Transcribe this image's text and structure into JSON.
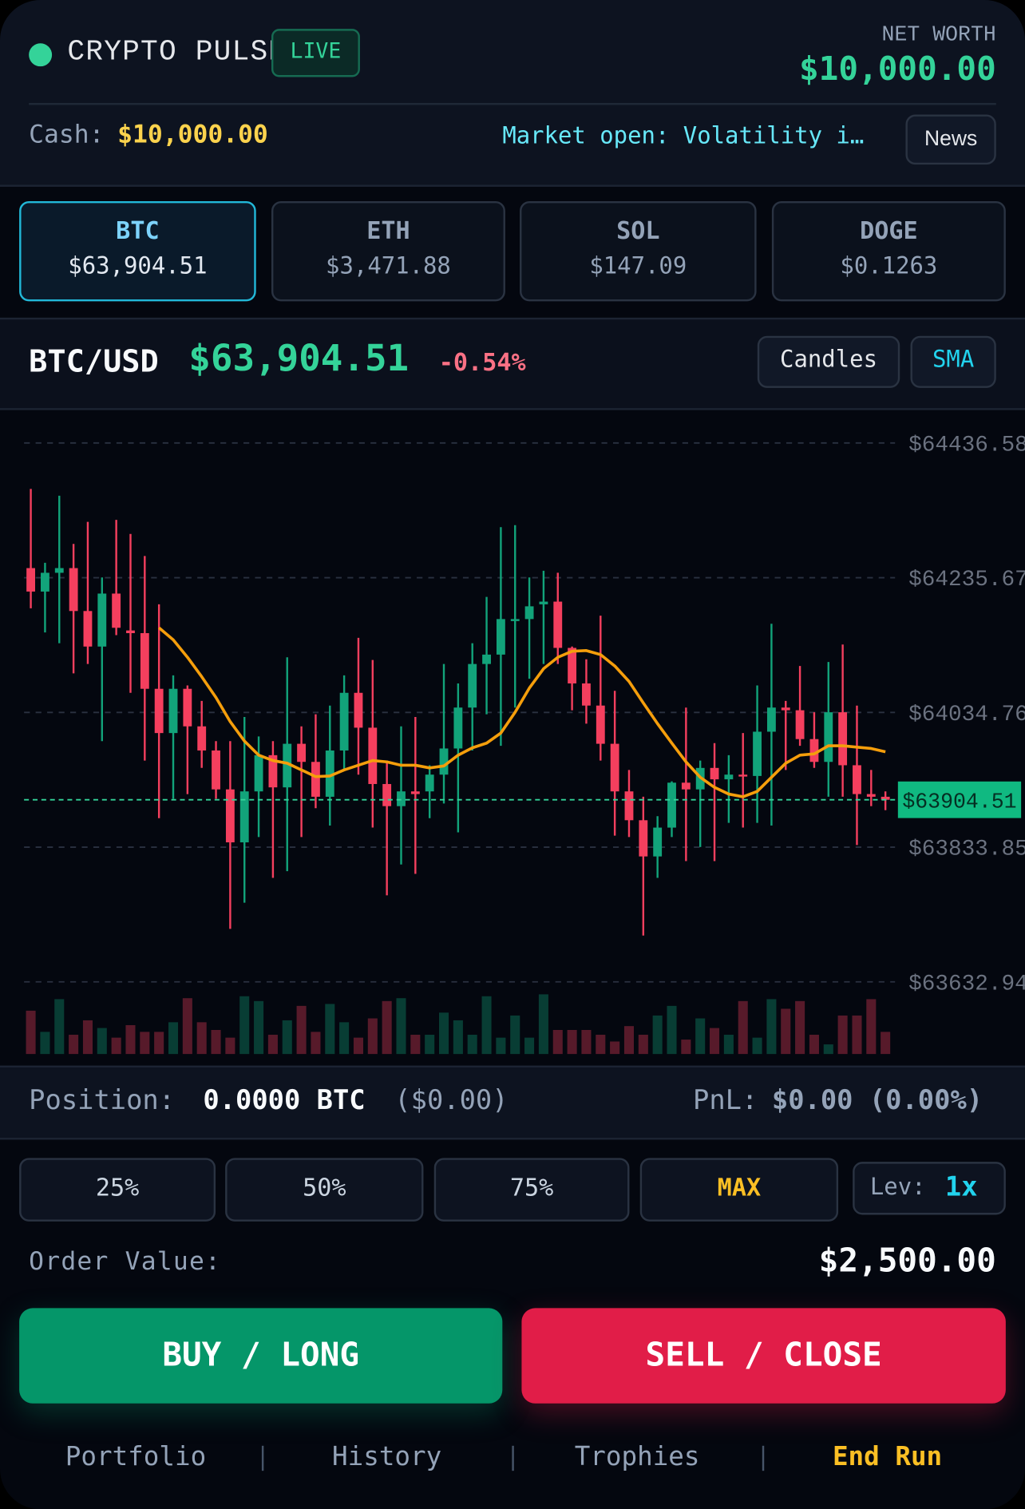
{
  "header": {
    "title": "CRYPTO PULSE",
    "badge": "LIVE",
    "net_worth_label": "NET WORTH",
    "net_worth": "$10,000.00",
    "cash_label": "Cash:",
    "cash": "$10,000.00",
    "ticker": "Market open: Volatility i…",
    "news_button": "News"
  },
  "assets": [
    {
      "symbol": "BTC",
      "price": "$63,904.51"
    },
    {
      "symbol": "ETH",
      "price": "$3,471.88"
    },
    {
      "symbol": "SOL",
      "price": "$147.09"
    },
    {
      "symbol": "DOGE",
      "price": "$0.1263"
    }
  ],
  "pair": {
    "symbol": "BTC/USD",
    "price": "$63,904.51",
    "change": "-0.54%",
    "buttons": [
      "Candles",
      "SMA"
    ]
  },
  "chart_data": {
    "type": "candlestick",
    "up_color": "#12a37a",
    "down_color": "#f43f5e",
    "sma_color": "#f59e0b",
    "grid": true,
    "ylim": [
      63600,
      64490
    ],
    "yticks": [
      {
        "value": 64436.58,
        "label": "$64436.58"
      },
      {
        "value": 64235.67,
        "label": "$64235.67"
      },
      {
        "value": 64034.76,
        "label": "$64034.76"
      },
      {
        "value": 63833.85,
        "label": "$63833.85"
      },
      {
        "value": 63632.94,
        "label": "$63632.94"
      }
    ],
    "last_price": {
      "value": 63904.51,
      "label": "$63904.51"
    },
    "open": [
      64250,
      64215,
      64243,
      64250,
      64186,
      64133,
      64212,
      64157,
      64153,
      64070,
      64004,
      64070,
      64014,
      63978,
      63920,
      63841,
      63917,
      63971,
      63923,
      63988,
      63961,
      63909,
      63978,
      64064,
      64012,
      63928,
      63895,
      63917,
      63917,
      63942,
      63981,
      64042,
      64107,
      64121,
      64171,
      64174,
      64196,
      64200,
      64131,
      64078,
      64045,
      63988,
      63917,
      63874,
      63820,
      63863,
      63930,
      63920,
      63952,
      63935,
      63942,
      63940,
      64006,
      64042,
      64038,
      63995,
      63961,
      64035,
      63956,
      63913,
      63909
    ],
    "high": [
      64368,
      64258,
      64358,
      64286,
      64319,
      64236,
      64322,
      64301,
      64268,
      64196,
      64090,
      64075,
      64052,
      63992,
      63992,
      64028,
      63999,
      63992,
      64117,
      64014,
      64032,
      64045,
      64090,
      64146,
      64113,
      63963,
      64014,
      64028,
      63956,
      64107,
      64078,
      64138,
      64207,
      64311,
      64314,
      64236,
      64246,
      64243,
      64133,
      64114,
      64179,
      64067,
      63949,
      63909,
      63880,
      63932,
      64042,
      63963,
      63989,
      63971,
      64004,
      64075,
      64167,
      64052,
      64104,
      64035,
      64110,
      64136,
      64045,
      63949,
      63917
    ],
    "low": [
      64190,
      64154,
      64138,
      64093,
      64107,
      63992,
      64150,
      64064,
      63963,
      63877,
      63906,
      63913,
      63952,
      63906,
      63712,
      63751,
      63849,
      63788,
      63798,
      63849,
      63892,
      63866,
      63949,
      63942,
      63863,
      63762,
      63808,
      63794,
      63877,
      63899,
      63856,
      63978,
      64032,
      63985,
      64042,
      64085,
      64107,
      64107,
      64038,
      64018,
      63963,
      63851,
      63849,
      63702,
      63788,
      63849,
      63813,
      63834,
      63813,
      63870,
      63863,
      63870,
      63866,
      63949,
      63985,
      63952,
      63909,
      63909,
      63837,
      63895,
      63889
    ],
    "close": [
      64215,
      64243,
      64250,
      64186,
      64133,
      64212,
      64161,
      64153,
      64070,
      64004,
      64070,
      64014,
      63978,
      63920,
      63841,
      63917,
      63971,
      63923,
      63988,
      63961,
      63909,
      63978,
      64064,
      64012,
      63928,
      63895,
      63917,
      63913,
      63942,
      63981,
      64042,
      64107,
      64121,
      64174,
      64174,
      64193,
      64200,
      64131,
      64078,
      64045,
      63988,
      63917,
      63874,
      63820,
      63863,
      63930,
      63920,
      63952,
      63935,
      63942,
      63940,
      64006,
      64042,
      64038,
      63995,
      63961,
      64035,
      63956,
      63913,
      63909,
      63904.51
    ],
    "volume": [
      45,
      23,
      57,
      20,
      35,
      27,
      17,
      30,
      23,
      23,
      33,
      58,
      33,
      25,
      17,
      60,
      55,
      20,
      35,
      50,
      23,
      52,
      33,
      17,
      37,
      55,
      58,
      20,
      20,
      43,
      35,
      20,
      60,
      17,
      40,
      17,
      62,
      25,
      25,
      25,
      20,
      13,
      29,
      20,
      40,
      50,
      15,
      37,
      27,
      20,
      55,
      17,
      57,
      47,
      55,
      20,
      10,
      40,
      40,
      57,
      23
    ],
    "sma": [
      null,
      null,
      null,
      null,
      null,
      null,
      null,
      null,
      null,
      64161,
      64143,
      64117,
      64088,
      64057,
      64021,
      63992,
      63971,
      63963,
      63959,
      63949,
      63939,
      63940,
      63949,
      63956,
      63963,
      63961,
      63956,
      63956,
      63952,
      63955,
      63971,
      63982,
      63989,
      64004,
      64035,
      64071,
      64100,
      64117,
      64126,
      64127,
      64121,
      64104,
      64081,
      64049,
      64018,
      63989,
      63961,
      63938,
      63923,
      63913,
      63909,
      63917,
      63938,
      63959,
      63971,
      63973,
      63985,
      63985,
      63983,
      63981,
      63976
    ]
  },
  "position": {
    "label": "Position:",
    "amount": "0.0000 BTC",
    "value": "($0.00)",
    "pnl_label": "PnL:",
    "pnl": "$0.00 (0.00%)"
  },
  "order": {
    "sizes": [
      "25%",
      "50%",
      "75%",
      "MAX"
    ],
    "leverage_label": "Lev:",
    "leverage": "1x",
    "value_label": "Order Value:",
    "value": "$2,500.00",
    "buy": "BUY / LONG",
    "sell": "SELL / CLOSE"
  },
  "nav": [
    "Portfolio",
    "History",
    "Trophies",
    "End Run"
  ]
}
